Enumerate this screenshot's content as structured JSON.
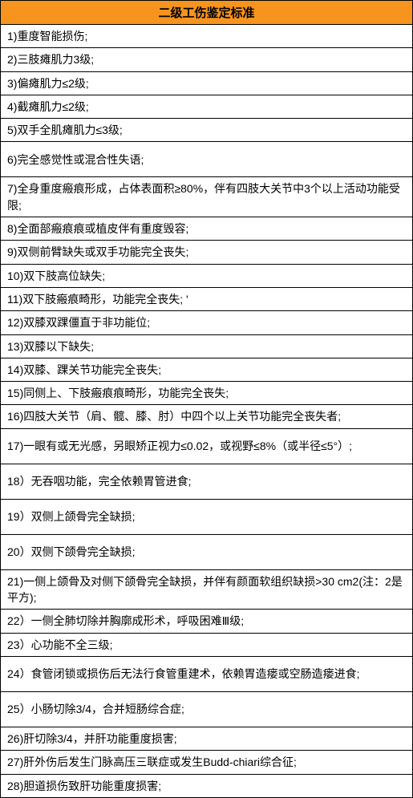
{
  "header": {
    "title": "二级工伤鉴定标准",
    "bg_color": "#f7941d"
  },
  "rows": [
    {
      "text": "1)重度智能损伤;",
      "height": "normal"
    },
    {
      "text": "2)三肢瘫肌力3级;",
      "height": "normal"
    },
    {
      "text": "3)偏瘫肌力≤2级;",
      "height": "normal"
    },
    {
      "text": "4)截瘫肌力≤2级;",
      "height": "normal"
    },
    {
      "text": "5)双手全肌瘫肌力≤3级;",
      "height": "normal"
    },
    {
      "text": "6)完全感觉性或混合性失语;",
      "height": "tall"
    },
    {
      "text": "7)全身重度瘢痕形成，占体表面积≥80%，伴有四肢大关节中3个以上活动功能受限;",
      "height": "normal"
    },
    {
      "text": "8)全面部瘢痕痕或植皮伴有重度毁容;",
      "height": "normal"
    },
    {
      "text": "9)双侧前臂缺失或双手功能完全丧失;",
      "height": "normal"
    },
    {
      "text": "10)双下肢高位缺失;",
      "height": "normal"
    },
    {
      "text": "11)双下肢瘢痕畸形，功能完全丧失;  '",
      "height": "normal"
    },
    {
      "text": "12)双膝双踝僵直于非功能位;",
      "height": "normal"
    },
    {
      "text": "13)双膝以下缺失;",
      "height": "normal"
    },
    {
      "text": "14)双膝、踝关节功能完全丧失;",
      "height": "normal"
    },
    {
      "text": "15)同侧上、下肢瘢痕痕畸形，功能完全丧失;",
      "height": "normal"
    },
    {
      "text": "16)四肢大关节（肩、髋、膝、肘）中四个以上关节功能完全丧失者;",
      "height": "normal"
    },
    {
      "text": "17)一眼有或无光感，另眼矫正视力≤0.02，或视野≤8%（或半径≤5°）;",
      "height": "tall"
    },
    {
      "text": "18）无吞咽功能，完全依赖胃管进食;",
      "height": "tall"
    },
    {
      "text": "19）双侧上颌骨完全缺损;",
      "height": "tall"
    },
    {
      "text": "20）双侧下颌骨完全缺损;",
      "height": "tall"
    },
    {
      "text": "21)一侧上颌骨及对侧下颌骨完全缺损，并伴有颜面软组织缺损>30 cm2(注：2是平方);",
      "height": "normal"
    },
    {
      "text": "22）一侧全肺切除并胸廓成形术，呼吸困难Ⅲ级;",
      "height": "normal"
    },
    {
      "text": "23）心功能不全三级;",
      "height": "normal"
    },
    {
      "text": "24）食管闭锁或损伤后无法行食管重建术，依赖胃造瘘或空肠造瘘进食;",
      "height": "tall"
    },
    {
      "text": "25）小肠切除3/4，合并短肠综合症;",
      "height": "tall"
    },
    {
      "text": "26)肝切除3/4，并肝功能重度损害;",
      "height": "normal"
    },
    {
      "text": "27)肝外伤后发生门脉高压三联症或发生Budd-chiari综合征;",
      "height": "normal"
    },
    {
      "text": "28)胆道损伤致肝功能重度损害;",
      "height": "normal"
    }
  ]
}
